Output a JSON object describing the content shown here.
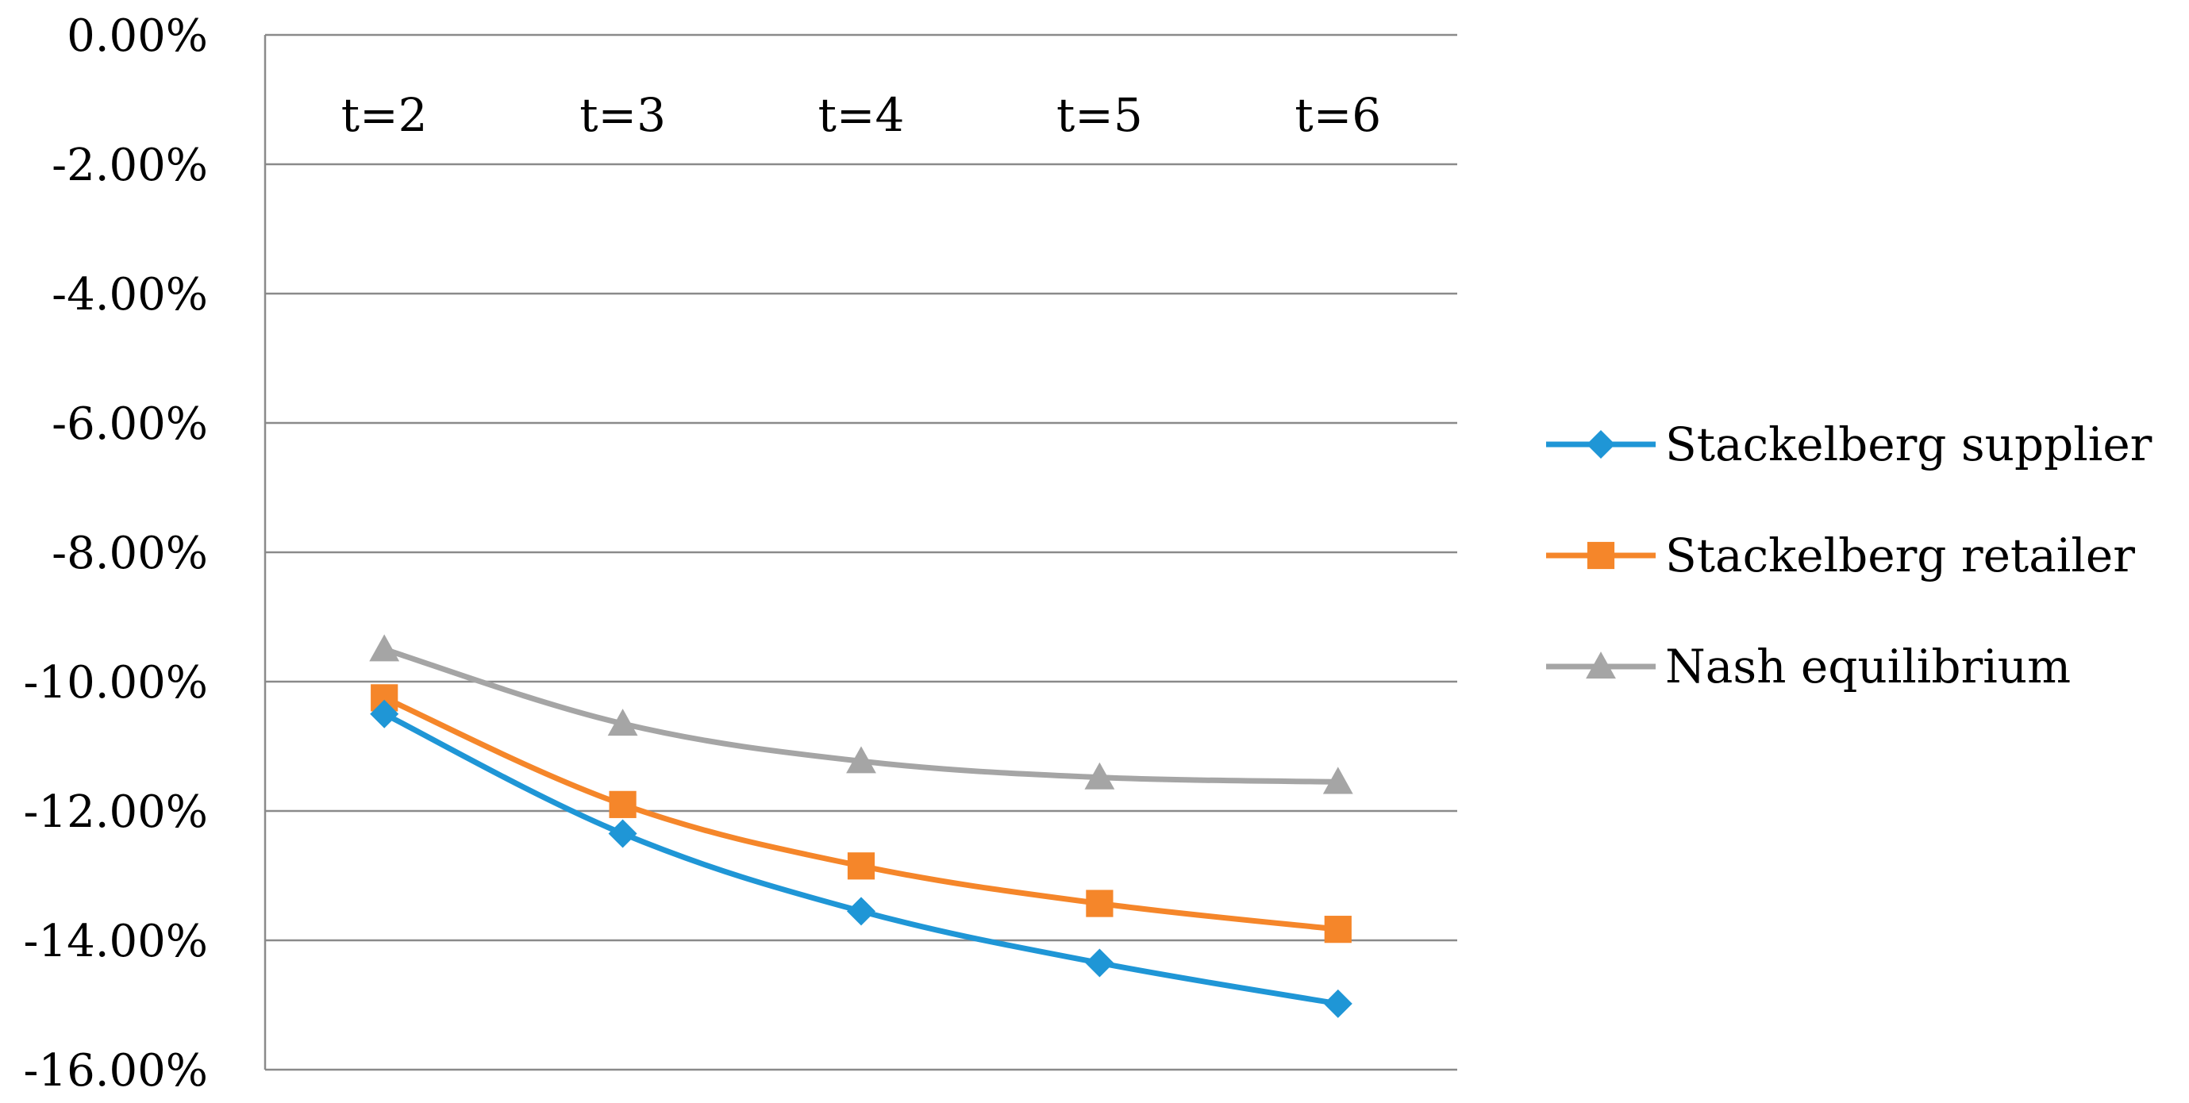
{
  "chart_data": {
    "type": "line",
    "title": "",
    "xlabel": "",
    "ylabel": "",
    "categories": [
      "t=2",
      "t=3",
      "t=4",
      "t=5",
      "t=6"
    ],
    "ylim": [
      -0.16,
      0.0
    ],
    "y_tick_step": 0.02,
    "y_tick_labels": [
      "0.00%",
      "-2.00%",
      "-4.00%",
      "-6.00%",
      "-8.00%",
      "-10.00%",
      "-12.00%",
      "-14.00%",
      "-16.00%"
    ],
    "x_axis_position": "top",
    "grid": true,
    "legend_position": "right",
    "series": [
      {
        "name": "Stackelberg supplier",
        "values": [
          -0.105,
          -0.1235,
          -0.1355,
          -0.1435,
          -0.1498
        ],
        "color": "#1f96d6",
        "marker": "diamond"
      },
      {
        "name": "Stackelberg retailer",
        "values": [
          -0.1025,
          -0.119,
          -0.1285,
          -0.1343,
          -0.1383
        ],
        "color": "#f5862a",
        "marker": "square"
      },
      {
        "name": "Nash equilibrium",
        "values": [
          -0.095,
          -0.1065,
          -0.1123,
          -0.1148,
          -0.1155
        ],
        "color": "#a5a5a5",
        "marker": "triangle"
      }
    ]
  }
}
